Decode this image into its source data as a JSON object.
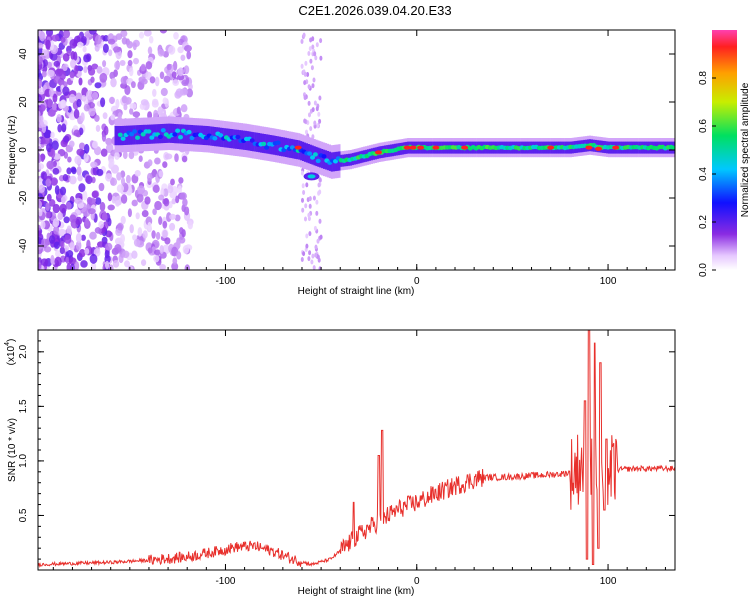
{
  "title": "C2E1.2026.039.04.20.E33",
  "chart_data": [
    {
      "type": "heatmap",
      "name": "spectrogram",
      "xlabel": "Height of straight line (km)",
      "ylabel": "Frequency (Hz)",
      "xlim": [
        -198,
        135
      ],
      "ylim": [
        -50,
        50
      ],
      "x_ticks": [
        -100,
        0,
        100
      ],
      "y_ticks": [
        -40,
        -20,
        0,
        20,
        40
      ],
      "x_tick_labels": [
        "-100",
        "0",
        "100"
      ],
      "y_tick_labels": [
        "-40",
        "-20",
        "0",
        "20",
        "40"
      ],
      "colorbar": {
        "label": "Normalized spectral amplitude",
        "range": [
          0,
          1
        ],
        "ticks": [
          0.0,
          0.2,
          0.4,
          0.6,
          0.8
        ],
        "tick_labels": [
          "0.0",
          "0.2",
          "0.4",
          "0.6",
          "0.8"
        ]
      },
      "ridge": {
        "description_points_x": [
          -155,
          -130,
          -110,
          -90,
          -75,
          -62,
          -52,
          -45,
          -35,
          -20,
          -5,
          10,
          30,
          60,
          80,
          90,
          100,
          120,
          135
        ],
        "description_points_freq": [
          6,
          7,
          6,
          4,
          2,
          0,
          -3,
          -5,
          -4,
          -1,
          1,
          1,
          1,
          1,
          1,
          2,
          1,
          1,
          1
        ]
      },
      "colors": {
        "low": "#f3eafe",
        "mid": "#00e8a8",
        "high": "#ff2020"
      }
    },
    {
      "type": "line",
      "name": "snr",
      "xlabel": "Height of straight line (km)",
      "ylabel": "SNR (10 * v/v)",
      "scale_label": "(x10",
      "scale_exp": "4",
      "scale_close": ")",
      "xlim": [
        -198,
        135
      ],
      "ylim": [
        0,
        2.2
      ],
      "x_ticks": [
        -100,
        0,
        100
      ],
      "y_ticks": [
        0.5,
        1.0,
        1.5,
        2.0
      ],
      "x_tick_labels": [
        "-100",
        "0",
        "100"
      ],
      "y_tick_labels": [
        "0.5",
        "1.0",
        "1.5",
        "2.0"
      ],
      "series": [
        {
          "name": "SNR",
          "color": "#e8302c",
          "x": [
            -198,
            -180,
            -160,
            -140,
            -120,
            -105,
            -95,
            -85,
            -75,
            -65,
            -55,
            -45,
            -35,
            -28,
            -22,
            -15,
            -8,
            0,
            10,
            20,
            30,
            35,
            45,
            55,
            65,
            75,
            82,
            88,
            92,
            96,
            100,
            105,
            115,
            125,
            135
          ],
          "y": [
            0.05,
            0.06,
            0.07,
            0.09,
            0.12,
            0.17,
            0.21,
            0.22,
            0.17,
            0.1,
            0.05,
            0.1,
            0.25,
            0.35,
            0.42,
            0.5,
            0.57,
            0.62,
            0.7,
            0.77,
            0.83,
            0.85,
            0.85,
            0.86,
            0.87,
            0.88,
            0.9,
            1.0,
            0.95,
            0.88,
            0.9,
            0.92,
            0.93,
            0.93,
            0.93
          ],
          "spikes": [
            {
              "x": -33,
              "y": 0.62
            },
            {
              "x": -20,
              "y": 1.05
            },
            {
              "x": -18,
              "y": 1.28
            },
            {
              "x": 88,
              "y": 1.55
            },
            {
              "x": 90,
              "y": 2.2
            },
            {
              "x": 93,
              "y": 2.08
            },
            {
              "x": 96,
              "y": 1.9
            },
            {
              "x": 99,
              "y": 1.2
            }
          ],
          "dips": [
            {
              "x": 89,
              "y": 0.1
            },
            {
              "x": 92,
              "y": 0.05
            },
            {
              "x": 95,
              "y": 0.2
            },
            {
              "x": 98,
              "y": 0.55
            }
          ]
        }
      ]
    }
  ]
}
